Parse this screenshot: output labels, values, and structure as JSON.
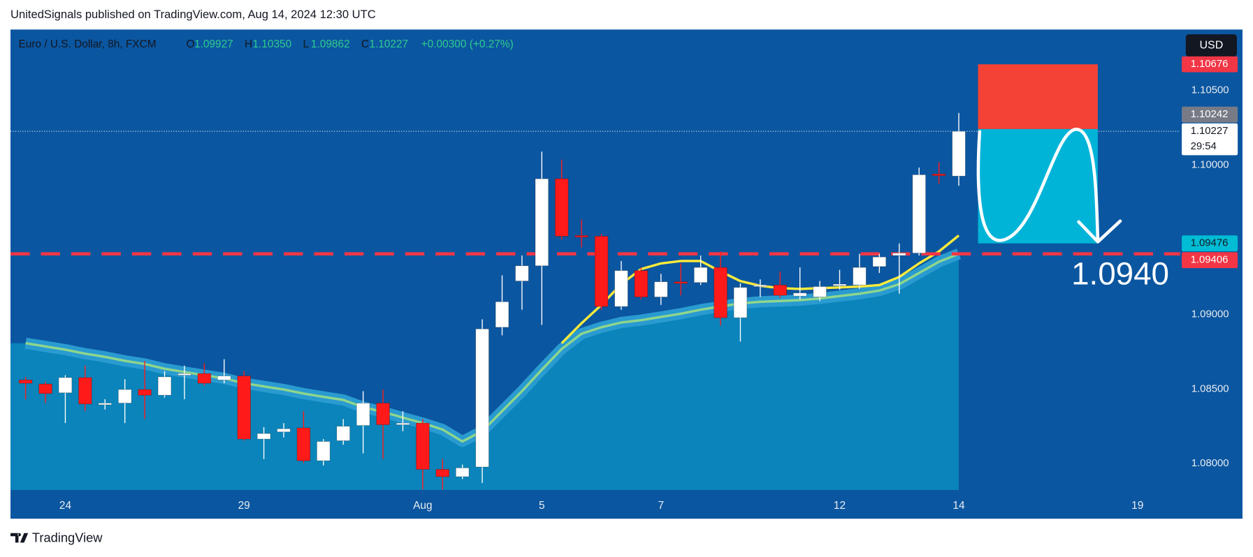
{
  "chart_data": {
    "type": "candlestick",
    "header": "UnitedSignals published on TradingView.com, Aug 14, 2024 12:30 UTC",
    "symbol": "Euro / U.S. Dollar, 8h, FXCM",
    "ohlc_legend": [
      {
        "key": "O",
        "value": "1.09927"
      },
      {
        "key": "H",
        "value": "1.10350"
      },
      {
        "key": "L",
        "value": "1.09862"
      },
      {
        "key": "C",
        "value": "1.10227"
      }
    ],
    "change": "+0.00300 (+0.27%)",
    "currency": "USD",
    "brand": "TradingView",
    "annotation": "1.0940",
    "up_color": "#ffffff",
    "down_color": "#ff1a1a",
    "open": [
      1.08561,
      1.08534,
      1.08475,
      1.08577,
      1.08395,
      1.08406,
      1.08497,
      1.08459,
      1.08593,
      1.08604,
      1.08561,
      1.08588,
      1.08165,
      1.08213,
      1.0824,
      1.0802,
      1.08154,
      1.08256,
      1.08406,
      1.08261,
      1.08272,
      1.07962,
      1.07913,
      1.07978,
      1.08914,
      1.09224,
      1.09326,
      1.09909,
      1.09529,
      1.09524,
      1.09053,
      1.09294,
      1.09117,
      1.09219,
      1.09214,
      1.09315,
      1.08978,
      1.09187,
      1.09197,
      1.09123,
      1.09117,
      1.09192,
      1.09197,
      1.09321,
      1.09395,
      1.09411,
      1.09941,
      1.09927
    ],
    "high": [
      1.08582,
      1.0855,
      1.08593,
      1.08657,
      1.08432,
      1.08566,
      1.08689,
      1.0862,
      1.08657,
      1.08673,
      1.087,
      1.0862,
      1.08245,
      1.08272,
      1.08352,
      1.08165,
      1.08299,
      1.08486,
      1.08497,
      1.08352,
      1.08299,
      1.08031,
      1.07994,
      1.08967,
      1.09262,
      1.09395,
      1.10091,
      1.10037,
      1.09636,
      1.0954,
      1.09358,
      1.09315,
      1.09272,
      1.09342,
      1.09395,
      1.09422,
      1.09208,
      1.09235,
      1.09288,
      1.09315,
      1.09224,
      1.09299,
      1.09406,
      1.09406,
      1.09476,
      1.09984,
      1.10021,
      1.1035
    ],
    "low": [
      1.08432,
      1.08406,
      1.08272,
      1.08352,
      1.08363,
      1.08272,
      1.08299,
      1.08443,
      1.08432,
      1.08523,
      1.08539,
      1.08154,
      1.08031,
      1.08176,
      1.08004,
      1.07988,
      1.08127,
      1.08069,
      1.08031,
      1.08218,
      1.07828,
      1.07828,
      1.07897,
      1.07871,
      1.0886,
      1.09032,
      1.0893,
      1.09502,
      1.09449,
      1.09032,
      1.09032,
      1.09101,
      1.09064,
      1.09128,
      1.09197,
      1.08925,
      1.08818,
      1.09117,
      1.09112,
      1.09101,
      1.0909,
      1.09165,
      1.09171,
      1.09278,
      1.09139,
      1.09395,
      1.09877,
      1.09862
    ],
    "close": [
      1.08539,
      1.0847,
      1.08577,
      1.084,
      1.08406,
      1.08497,
      1.08459,
      1.08582,
      1.08604,
      1.08539,
      1.08588,
      1.08165,
      1.08202,
      1.08234,
      1.0802,
      1.08149,
      1.08251,
      1.08406,
      1.08261,
      1.08272,
      1.07962,
      1.07913,
      1.07972,
      1.08903,
      1.09085,
      1.09326,
      1.09909,
      1.09524,
      1.09518,
      1.09053,
      1.09294,
      1.09117,
      1.09219,
      1.09208,
      1.09315,
      1.08978,
      1.09181,
      1.09197,
      1.09128,
      1.09144,
      1.09187,
      1.09203,
      1.09315,
      1.09385,
      1.09411,
      1.09936,
      1.0993,
      1.10227
    ],
    "series": [
      {
        "color": "#8fd68c",
        "fill": "#0a84ba",
        "band": "#2a9bd0",
        "values": [
          1.08807,
          1.08786,
          1.08764,
          1.08737,
          1.08716,
          1.08689,
          1.08668,
          1.08636,
          1.08614,
          1.08593,
          1.08572,
          1.08539,
          1.08518,
          1.08497,
          1.0847,
          1.08448,
          1.08427,
          1.08379,
          1.08347,
          1.08309,
          1.08272,
          1.08229,
          1.08149,
          1.08218,
          1.08352,
          1.08486,
          1.0863,
          1.08769,
          1.08871,
          1.08914,
          1.08946,
          1.08962,
          1.08983,
          1.09005,
          1.09032,
          1.09053,
          1.09074,
          1.09085,
          1.0909,
          1.09096,
          1.09107,
          1.09123,
          1.09139,
          1.0916,
          1.09203,
          1.09278,
          1.09353,
          1.09406
        ]
      },
      {
        "color": "#ffeb3b",
        "values": [
          null,
          null,
          null,
          null,
          null,
          null,
          null,
          null,
          null,
          null,
          null,
          null,
          null,
          null,
          null,
          null,
          null,
          null,
          null,
          null,
          null,
          null,
          null,
          null,
          null,
          null,
          null,
          1.08807,
          1.08941,
          1.09064,
          1.09203,
          1.09304,
          1.09342,
          1.09358,
          1.09358,
          1.09288,
          1.09224,
          1.09192,
          1.09176,
          1.09171,
          1.09176,
          1.09181,
          1.09187,
          1.09197,
          1.09251,
          1.09342,
          1.09422,
          1.09529
        ]
      }
    ],
    "hlines": [
      {
        "value": 1.09406,
        "color": "#f23645"
      }
    ],
    "position": {
      "stop": 1.10676,
      "entry": 1.10242,
      "target": 1.09476,
      "stop_color": "#f44336",
      "target_color": "#00b4d8"
    },
    "price_labels": [
      {
        "value": 1.10676,
        "label": "1.10676",
        "color": "#f23645",
        "text_color": "#ffffff"
      },
      {
        "value": 1.10242,
        "label": "1.10242",
        "color": "#787b86",
        "text_color": "#ffffff"
      },
      {
        "value": 1.10227,
        "label": "1.10227",
        "color": "#ffffff",
        "text_color": "#131722",
        "countdown": "29:54"
      },
      {
        "value": 1.09476,
        "label": "1.09476",
        "color": "#00bcd4",
        "text_color": "#131722"
      },
      {
        "value": 1.09406,
        "label": "1.09406",
        "color": "#f23645",
        "text_color": "#ffffff"
      }
    ],
    "xlim": [
      -0.76,
      58.15
    ],
    "ylim": [
      1.07824,
      1.10909
    ],
    "xticks": [
      {
        "value": 2,
        "label": "24"
      },
      {
        "value": 11,
        "label": "29"
      },
      {
        "value": 20,
        "label": "Aug"
      },
      {
        "value": 26,
        "label": "5"
      },
      {
        "value": 32,
        "label": "7"
      },
      {
        "value": 41,
        "label": "12"
      },
      {
        "value": 47,
        "label": "14"
      },
      {
        "value": 56,
        "label": "19"
      }
    ],
    "yticks": [
      {
        "value": 1.08,
        "label": "1.08000"
      },
      {
        "value": 1.085,
        "label": "1.08500"
      },
      {
        "value": 1.09,
        "label": "1.09000"
      },
      {
        "value": 1.1,
        "label": "1.10000"
      },
      {
        "value": 1.105,
        "label": "1.10500"
      }
    ],
    "grid": false
  }
}
